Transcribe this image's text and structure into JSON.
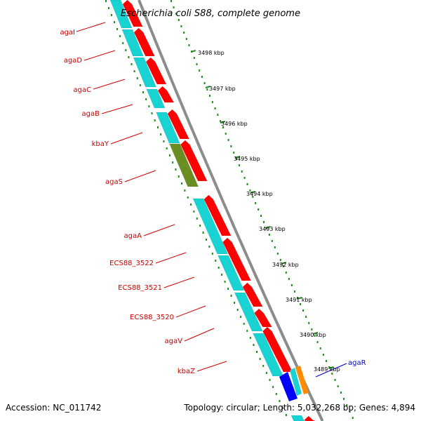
{
  "title": "Escherichia coli S88, complete genome",
  "footer": {
    "accession": "Accession: NC_011742",
    "summary": "Topology: circular; Length: 5,032,268 bp; Genes: 4,894"
  },
  "colors": {
    "forward_cds": "#ff0000",
    "reverse_cds": "#19d2d2",
    "pseudo_olive": "#6b8e23",
    "trna_blue": "#0000ff",
    "orange": "#ff8c00",
    "label_red": "#cc0000",
    "label_blue": "#0000cc",
    "backbone": "#8c8c8c",
    "tick_green": "#228b22"
  },
  "kbp_ticks": [
    "3498 kbp",
    "3497 kbp",
    "3496 kbp",
    "3495 kbp",
    "3494 kbp",
    "3493 kbp",
    "3492 kbp",
    "3491 kbp",
    "3490 kbp",
    "3489 kbp"
  ],
  "gene_labels": [
    "agaI",
    "agaD",
    "agaC",
    "agaB",
    "kbaY",
    "agaS",
    "agaA",
    "ECS88_3522",
    "ECS88_3521",
    "ECS88_3520",
    "agaV",
    "kbaZ"
  ],
  "right_label": "agaR"
}
